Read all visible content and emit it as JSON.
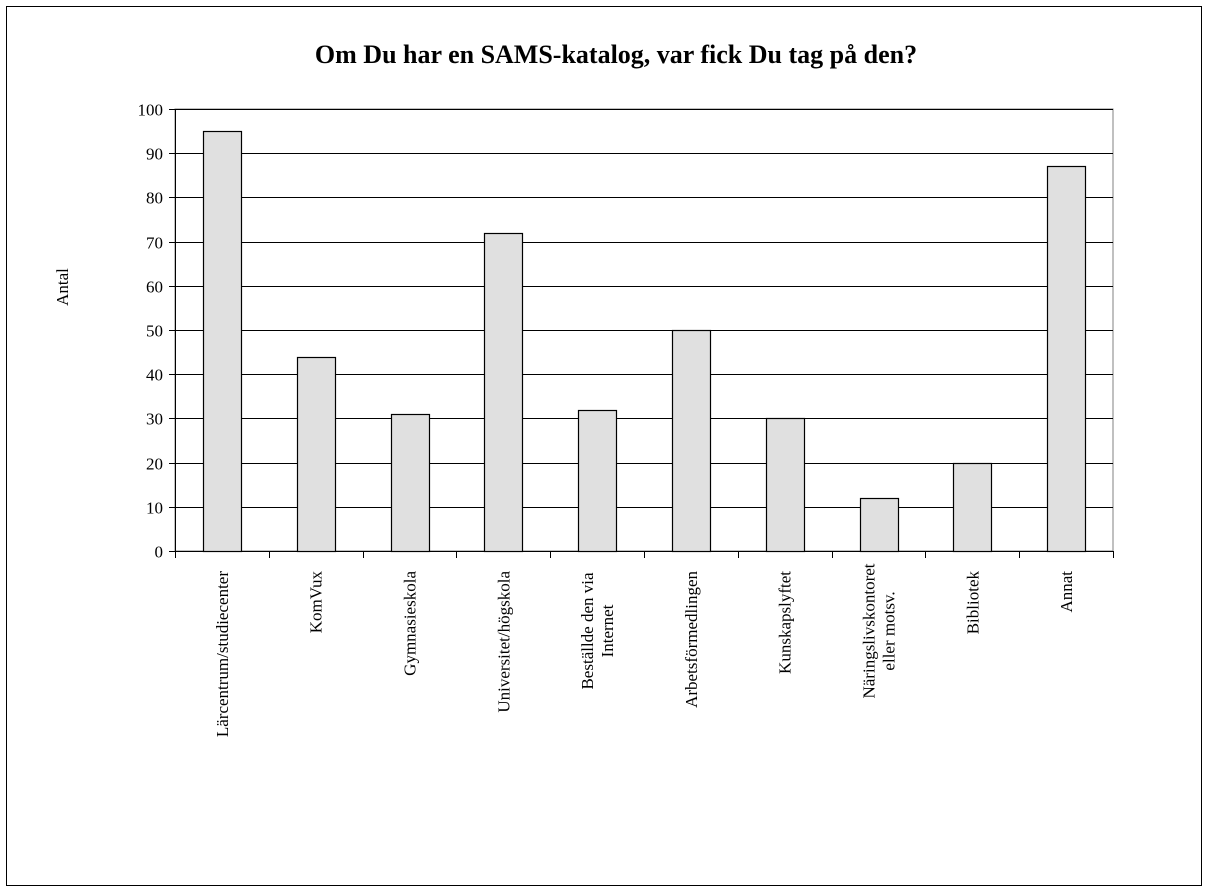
{
  "chart_data": {
    "type": "bar",
    "title": "Om Du har en SAMS-katalog, var fick Du tag på den?",
    "ylabel": "Antal",
    "xlabel": "",
    "ylim": [
      0,
      100
    ],
    "yticks": [
      0,
      10,
      20,
      30,
      40,
      50,
      60,
      70,
      80,
      90,
      100
    ],
    "grid": true,
    "legend": false,
    "categories": [
      [
        "Lärcentrum/studiecenter"
      ],
      [
        "KomVux"
      ],
      [
        "Gymnasieskola"
      ],
      [
        "Universitet/högskola"
      ],
      [
        "Beställde den via",
        "Internet"
      ],
      [
        "Arbetsförmedlingen"
      ],
      [
        "Kunskapslyftet"
      ],
      [
        "Näringslivskontoret",
        "eller motsv."
      ],
      [
        "Bibliotek"
      ],
      [
        "Annat"
      ]
    ],
    "values": [
      95,
      44,
      31,
      72,
      32,
      50,
      30,
      12,
      20,
      87
    ],
    "colors": {
      "bar_fill": "#e0e0e0",
      "bar_stroke": "#000000",
      "grid": "#000000",
      "plot_border": "#808080"
    }
  }
}
